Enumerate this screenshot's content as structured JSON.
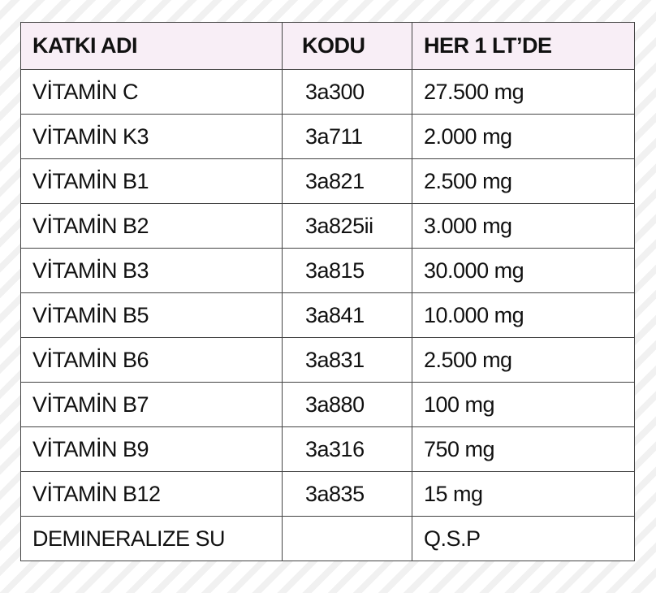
{
  "table": {
    "header": [
      "KATKI ADI",
      "KODU",
      "HER 1 LT’DE"
    ],
    "rows": [
      [
        "VİTAMİN C",
        "3a300",
        "27.500 mg"
      ],
      [
        "VİTAMİN K3",
        "3a711",
        "2.000 mg"
      ],
      [
        "VİTAMİN B1",
        "3a821",
        "2.500 mg"
      ],
      [
        "VİTAMİN B2",
        "3a825ii",
        "3.000 mg"
      ],
      [
        "VİTAMİN B3",
        "3a815",
        "30.000 mg"
      ],
      [
        "VİTAMİN B5",
        "3a841",
        "10.000 mg"
      ],
      [
        "VİTAMİN B6",
        "3a831",
        "2.500 mg"
      ],
      [
        "VİTAMİN B7",
        "3a880",
        "100 mg"
      ],
      [
        "VİTAMİN B9",
        "3a316",
        "750 mg"
      ],
      [
        "VİTAMİN B12",
        "3a835",
        "15 mg"
      ],
      [
        "DEMINERALIZE SU",
        null,
        "Q.S.P"
      ]
    ]
  }
}
